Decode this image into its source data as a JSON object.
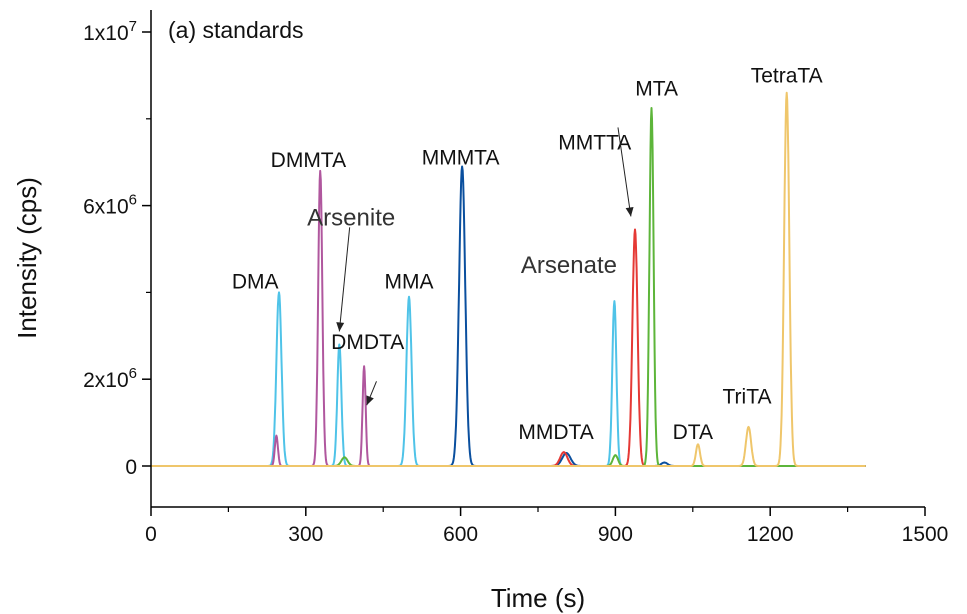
{
  "chart_data": {
    "type": "line",
    "title": "(a) standards",
    "xlabel": "Time (s)",
    "ylabel": "Intensity (cps)",
    "xlim": [
      0,
      1500
    ],
    "ylim": [
      -1000000,
      10500000
    ],
    "x_ticks": [
      {
        "value": 0,
        "label": "0"
      },
      {
        "value": 300,
        "label": "300"
      },
      {
        "value": 600,
        "label": "600"
      },
      {
        "value": 900,
        "label": "900"
      },
      {
        "value": 1200,
        "label": "1200"
      },
      {
        "value": 1500,
        "label": "1500"
      }
    ],
    "y_ticks": [
      {
        "value": 0,
        "label": "0"
      },
      {
        "value": 2000000,
        "base": "2x10",
        "exp": "6"
      },
      {
        "value": 6000000,
        "base": "6x10",
        "exp": "6"
      },
      {
        "value": 10000000,
        "base": "1x10",
        "exp": "7"
      }
    ],
    "x_end": 1385,
    "grid": false,
    "legend": "none",
    "series": [
      {
        "color": "#4FC3E8",
        "peaks": [
          [
            248,
            4000000,
            5
          ],
          [
            365,
            2800000,
            4
          ],
          [
            500,
            3900000,
            5
          ],
          [
            898,
            3800000,
            4
          ]
        ]
      },
      {
        "color": "#B0579E",
        "peaks": [
          [
            243,
            700000,
            3
          ],
          [
            328,
            6800000,
            4
          ],
          [
            413,
            2300000,
            3
          ]
        ]
      },
      {
        "color": "#0A4F9E",
        "peaks": [
          [
            603,
            6900000,
            6
          ],
          [
            805,
            300000,
            8
          ],
          [
            995,
            80000,
            6
          ]
        ]
      },
      {
        "color": "#E53935",
        "peaks": [
          [
            800,
            320000,
            7
          ],
          [
            938,
            5450000,
            5
          ]
        ]
      },
      {
        "color": "#5DB53A",
        "peaks": [
          [
            375,
            200000,
            6
          ],
          [
            900,
            250000,
            5
          ],
          [
            970,
            8250000,
            4
          ]
        ]
      },
      {
        "color": "#EFC66B",
        "peaks": [
          [
            1060,
            500000,
            4
          ],
          [
            1158,
            900000,
            5
          ],
          [
            1232,
            8600000,
            5
          ]
        ]
      }
    ],
    "annotations": [
      {
        "text": "DMA",
        "x": 202,
        "y": 4000000
      },
      {
        "text": "DMMTA",
        "x": 305,
        "y": 6800000
      },
      {
        "text": "Arsenite",
        "x": 388,
        "y": 5450000,
        "large": true
      },
      {
        "text": "DMDTA",
        "x": 420,
        "y": 2600000
      },
      {
        "text": "MMA",
        "x": 500,
        "y": 4000000
      },
      {
        "text": "MMMTA",
        "x": 600,
        "y": 6850000
      },
      {
        "text": "Arsenate",
        "x": 810,
        "y": 4350000,
        "large": true
      },
      {
        "text": "MMTTA",
        "x": 860,
        "y": 7200000
      },
      {
        "text": "MTA",
        "x": 980,
        "y": 8450000
      },
      {
        "text": "TetraTA",
        "x": 1232,
        "y": 8750000
      },
      {
        "text": "MMDTA",
        "x": 785,
        "y": 530000
      },
      {
        "text": "DTA",
        "x": 1050,
        "y": 530000
      },
      {
        "text": "TriTA",
        "x": 1155,
        "y": 1350000
      }
    ],
    "arrows": [
      {
        "from": [
          385,
          5500000
        ],
        "to": [
          365,
          3100000
        ]
      },
      {
        "from": [
          437,
          1950000
        ],
        "to": [
          418,
          1400000
        ]
      },
      {
        "from": [
          905,
          7800000
        ],
        "to": [
          930,
          5750000
        ]
      }
    ]
  }
}
